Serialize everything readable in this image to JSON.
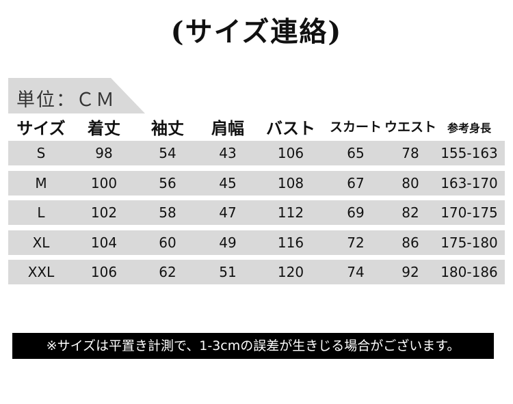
{
  "title": "(サイズ連絡)",
  "unit_label": "単位：ＣＭ",
  "columns": [
    "サイズ",
    "着丈",
    "袖丈",
    "肩幅",
    "バスト",
    "スカート",
    "ウエスト",
    "参考身長"
  ],
  "rows": [
    [
      "S",
      "98",
      "54",
      "43",
      "106",
      "65",
      "78",
      "155-163"
    ],
    [
      "M",
      "100",
      "56",
      "45",
      "108",
      "67",
      "80",
      "163-170"
    ],
    [
      "L",
      "102",
      "58",
      "47",
      "112",
      "69",
      "82",
      "170-175"
    ],
    [
      "XL",
      "104",
      "60",
      "49",
      "116",
      "72",
      "86",
      "175-180"
    ],
    [
      "XXL",
      "106",
      "62",
      "51",
      "120",
      "74",
      "92",
      "180-186"
    ]
  ],
  "note": "※サイズは平置き計測で、1-3cmの誤差が生きじる場合がございます。",
  "colors": {
    "row_band": "#d9d9d9",
    "note_bg": "#000000",
    "note_text": "#ffffff"
  }
}
